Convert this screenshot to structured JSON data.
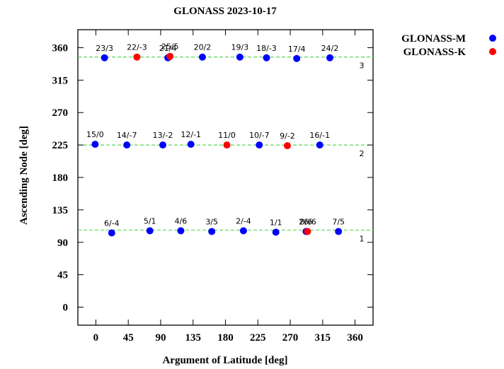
{
  "chart_data": {
    "type": "scatter",
    "title": "GLONASS  2023-10-17",
    "xlabel": "Argument of Latitude [deg]",
    "ylabel": "Ascending Node [deg]",
    "xlim": [
      -25,
      385
    ],
    "ylim": [
      -25,
      385
    ],
    "xticks": [
      0,
      45,
      90,
      135,
      180,
      225,
      270,
      315,
      360
    ],
    "yticks": [
      0,
      45,
      90,
      135,
      180,
      225,
      270,
      315,
      360
    ],
    "grid": false,
    "legend_position": "outside-top-right",
    "series": [
      {
        "name": "GLONASS-M",
        "color": "#0000ff"
      },
      {
        "name": "GLONASS-K",
        "color": "#ff0000"
      }
    ],
    "reference_lines": [
      {
        "y": 347,
        "label": "3"
      },
      {
        "y": 225,
        "label": "2"
      },
      {
        "y": 107,
        "label": "1"
      }
    ],
    "points": [
      {
        "x": 12,
        "y": 346,
        "series": "GLONASS-M",
        "label": "23/3"
      },
      {
        "x": 57,
        "y": 347,
        "series": "GLONASS-K",
        "label": "22/-3"
      },
      {
        "x": 100,
        "y": 346,
        "series": "GLONASS-M",
        "label": "21/4"
      },
      {
        "x": 103,
        "y": 348,
        "series": "GLONASS-K",
        "label": "25/5"
      },
      {
        "x": 148,
        "y": 347,
        "series": "GLONASS-M",
        "label": "20/2"
      },
      {
        "x": 200,
        "y": 347,
        "series": "GLONASS-M",
        "label": "19/3"
      },
      {
        "x": 237,
        "y": 346,
        "series": "GLONASS-M",
        "label": "18/-3"
      },
      {
        "x": 279,
        "y": 345,
        "series": "GLONASS-M",
        "label": "17/4"
      },
      {
        "x": 325,
        "y": 346,
        "series": "GLONASS-M",
        "label": "24/2"
      },
      {
        "x": -1,
        "y": 226,
        "series": "GLONASS-M",
        "label": "15/0"
      },
      {
        "x": 43,
        "y": 225,
        "series": "GLONASS-M",
        "label": "14/-7"
      },
      {
        "x": 93,
        "y": 225,
        "series": "GLONASS-M",
        "label": "13/-2"
      },
      {
        "x": 132,
        "y": 226,
        "series": "GLONASS-M",
        "label": "12/-1"
      },
      {
        "x": 182,
        "y": 225,
        "series": "GLONASS-K",
        "label": "11/0"
      },
      {
        "x": 227,
        "y": 225,
        "series": "GLONASS-M",
        "label": "10/-7"
      },
      {
        "x": 266,
        "y": 224,
        "series": "GLONASS-K",
        "label": "9/-2"
      },
      {
        "x": 311,
        "y": 225,
        "series": "GLONASS-M",
        "label": "16/-1"
      },
      {
        "x": 22,
        "y": 103,
        "series": "GLONASS-M",
        "label": "6/-4"
      },
      {
        "x": 75,
        "y": 106,
        "series": "GLONASS-M",
        "label": "5/1"
      },
      {
        "x": 118,
        "y": 106,
        "series": "GLONASS-M",
        "label": "4/6"
      },
      {
        "x": 161,
        "y": 105,
        "series": "GLONASS-M",
        "label": "3/5"
      },
      {
        "x": 205,
        "y": 106,
        "series": "GLONASS-M",
        "label": "2/-4"
      },
      {
        "x": 250,
        "y": 104,
        "series": "GLONASS-M",
        "label": "1/1"
      },
      {
        "x": 292,
        "y": 105,
        "series": "GLONASS-M",
        "label": "8/6"
      },
      {
        "x": 294,
        "y": 105,
        "series": "GLONASS-K",
        "label": "26/6"
      },
      {
        "x": 337,
        "y": 105,
        "series": "GLONASS-M",
        "label": "7/5"
      }
    ]
  }
}
